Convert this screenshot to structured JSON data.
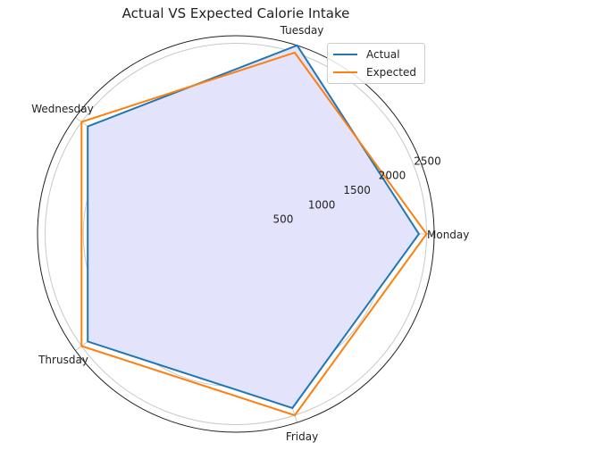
{
  "chart_data": {
    "type": "radar",
    "title": "Actual VS Expected Calorie Intake",
    "categories": [
      "Monday",
      "Tuesday",
      "Wednesday",
      "Thrusday",
      "Friday"
    ],
    "rlim": [
      0,
      2600
    ],
    "radial_ticks": [
      500,
      1000,
      1500,
      2000,
      2500
    ],
    "radial_tick_labels": [
      "500",
      "1000",
      "1500",
      "2000",
      "2500"
    ],
    "grid": true,
    "legend_position": "top-right",
    "series": [
      {
        "name": "Actual",
        "values": [
          2400,
          2600,
          2400,
          2400,
          2400
        ],
        "color": "#1f77b4"
      },
      {
        "name": "Expected",
        "values": [
          2500,
          2500,
          2500,
          2500,
          2500
        ],
        "color": "#ff7f0e"
      }
    ],
    "fill_color": "#e3e3fb"
  }
}
